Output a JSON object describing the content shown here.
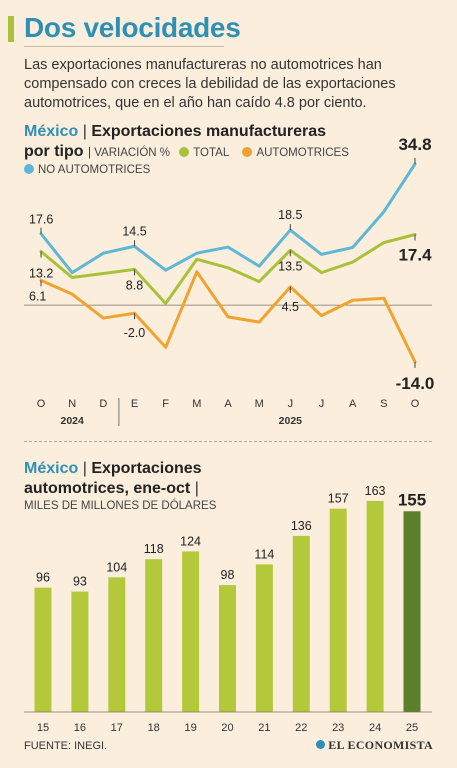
{
  "header": {
    "title": "Dos velocidades",
    "intro": "Las exportaciones manufactureras no automotrices han compensado con creces la debilidad de las exportaciones automotrices, que en el año han caído 4.8 por ciento."
  },
  "colors": {
    "total": "#a9c13a",
    "automotrices": "#f0a32e",
    "no_automotrices": "#5fb7d6",
    "bar": "#b4c93a",
    "bar_last": "#5b7f2a",
    "accent": "#2f8fb5"
  },
  "chart1_header": {
    "country": "México",
    "separator": "|",
    "title_part1": "Exportaciones manufactureras",
    "title_part2": "por tipo",
    "unit": "VARIACIÓN %",
    "legend_total": "TOTAL",
    "legend_auto": "AUTOMOTRICES",
    "legend_noauto": "NO AUTOMOTRICES"
  },
  "chart2_header": {
    "country": "México",
    "separator": "|",
    "title_part1": "Exportaciones",
    "title_part2": "automotrices, ene-oct",
    "unit": "MILES DE MILLONES DE DÓLARES"
  },
  "footer": {
    "source": "FUENTE: INEGI.",
    "brand": "EL ECONOMISTA"
  },
  "chart_data": [
    {
      "type": "line",
      "x": [
        "O",
        "N",
        "D",
        "E",
        "F",
        "M",
        "A",
        "M",
        "J",
        "J",
        "A",
        "S",
        "O"
      ],
      "year_labels": [
        {
          "label": "2024",
          "under_index": 1
        },
        {
          "label": "2025",
          "under_index": 8
        }
      ],
      "ylim": [
        -16,
        37
      ],
      "series": [
        {
          "name": "NO AUTOMOTRICES",
          "color": "#5fb7d6",
          "values": [
            17.6,
            8.0,
            12.8,
            14.5,
            8.6,
            12.8,
            14.3,
            9.6,
            18.5,
            12.5,
            14.2,
            23.0,
            34.8
          ]
        },
        {
          "name": "TOTAL",
          "color": "#a9c13a",
          "values": [
            13.2,
            6.8,
            7.8,
            8.8,
            0.4,
            11.3,
            9.2,
            5.8,
            13.5,
            8.0,
            10.6,
            15.4,
            17.4
          ]
        },
        {
          "name": "AUTOMOTRICES",
          "color": "#f0a32e",
          "values": [
            6.1,
            2.7,
            -3.2,
            -2.0,
            -10.4,
            8.2,
            -2.9,
            -4.2,
            4.5,
            -2.6,
            1.2,
            1.7,
            -14.0
          ]
        }
      ],
      "annotations": [
        {
          "series": "NO AUTOMOTRICES",
          "index": 0,
          "text": "17.6"
        },
        {
          "series": "NO AUTOMOTRICES",
          "index": 3,
          "text": "14.5"
        },
        {
          "series": "NO AUTOMOTRICES",
          "index": 8,
          "text": "18.5"
        },
        {
          "series": "NO AUTOMOTRICES",
          "index": 12,
          "text": "34.8"
        },
        {
          "series": "TOTAL",
          "index": 0,
          "text": "13.2"
        },
        {
          "series": "TOTAL",
          "index": 3,
          "text": "8.8"
        },
        {
          "series": "TOTAL",
          "index": 8,
          "text": "13.5"
        },
        {
          "series": "TOTAL",
          "index": 12,
          "text": "17.4"
        },
        {
          "series": "AUTOMOTRICES",
          "index": 0,
          "text": "6.1"
        },
        {
          "series": "AUTOMOTRICES",
          "index": 3,
          "text": "-2.0"
        },
        {
          "series": "AUTOMOTRICES",
          "index": 8,
          "text": "4.5"
        },
        {
          "series": "AUTOMOTRICES",
          "index": 12,
          "text": "-14.0"
        }
      ],
      "grid": false
    },
    {
      "type": "bar",
      "categories": [
        "15",
        "16",
        "17",
        "18",
        "19",
        "20",
        "21",
        "22",
        "23",
        "24",
        "25"
      ],
      "values": [
        96,
        93,
        104,
        118,
        124,
        98,
        114,
        136,
        157,
        163,
        155
      ],
      "data_labels": [
        "96",
        "93",
        "104",
        "118",
        "124",
        "98",
        "114",
        "136",
        "157",
        "163",
        "155"
      ],
      "ylim": [
        0,
        170
      ],
      "highlight_index": 10,
      "grid": false
    }
  ]
}
